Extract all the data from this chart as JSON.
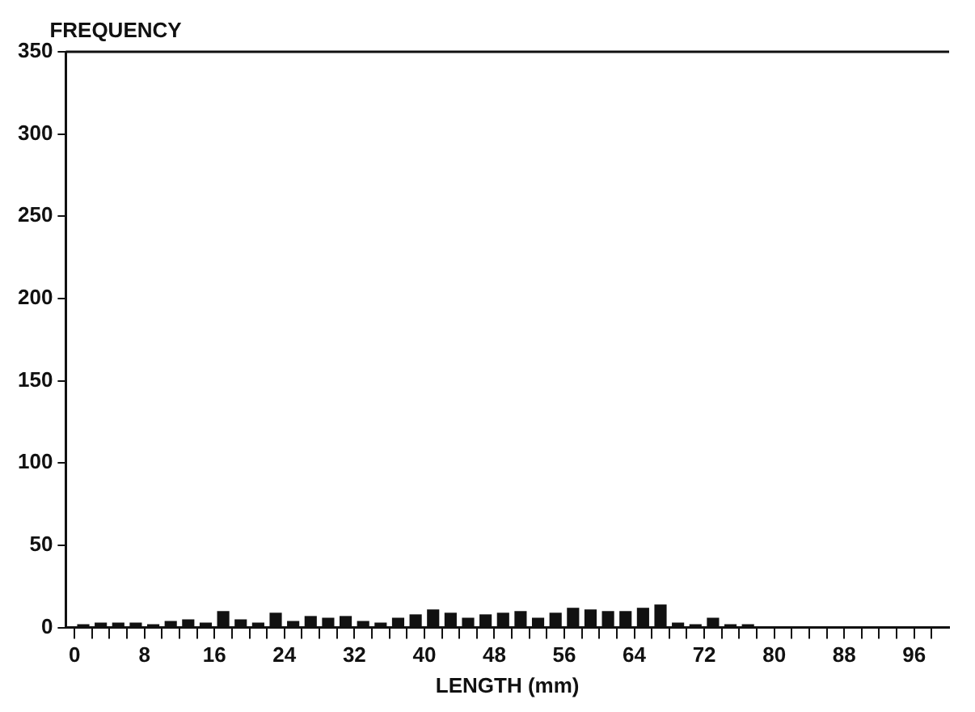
{
  "chart_data": {
    "type": "histogram",
    "xlabel": "LENGTH (mm)",
    "ylabel": "FREQUENCY",
    "bins": [
      0,
      2,
      4,
      6,
      8,
      10,
      12,
      14,
      16,
      18,
      20,
      22,
      24,
      26,
      28,
      30,
      32,
      34,
      36,
      38,
      40,
      42,
      44,
      46,
      48,
      50,
      52,
      54,
      56,
      58,
      60,
      62,
      64,
      66,
      68,
      70,
      72,
      74,
      76,
      78,
      80,
      82,
      84,
      86,
      88,
      90,
      92,
      94,
      96,
      98,
      100
    ],
    "values": [
      2,
      3,
      3,
      3,
      2,
      4,
      5,
      3,
      10,
      5,
      3,
      9,
      4,
      7,
      6,
      7,
      4,
      3,
      6,
      8,
      11,
      9,
      6,
      8,
      9,
      10,
      6,
      9,
      12,
      11,
      10,
      10,
      12,
      14,
      3,
      2,
      6,
      2,
      2,
      0,
      0,
      0,
      0,
      0,
      0,
      0,
      0,
      0,
      0,
      0
    ],
    "color": "#111111",
    "xlim": [
      -1,
      100
    ],
    "xticks": [
      0,
      {
        "value": 2,
        "label": null
      },
      {
        "value": 4,
        "label": null
      },
      {
        "value": 6,
        "label": null
      },
      8,
      {
        "value": 10,
        "label": null
      },
      {
        "value": 12,
        "label": null
      },
      {
        "value": 14,
        "label": null
      },
      16,
      {
        "value": 18,
        "label": null
      },
      {
        "value": 20,
        "label": null
      },
      {
        "value": 22,
        "label": null
      },
      24,
      {
        "value": 26,
        "label": null
      },
      {
        "value": 28,
        "label": null
      },
      {
        "value": 30,
        "label": null
      },
      32,
      {
        "value": 34,
        "label": null
      },
      {
        "value": 36,
        "label": null
      },
      {
        "value": 38,
        "label": null
      },
      40,
      {
        "value": 42,
        "label": null
      },
      {
        "value": 44,
        "label": null
      },
      {
        "value": 46,
        "label": null
      },
      48,
      {
        "value": 50,
        "label": null
      },
      {
        "value": 52,
        "label": null
      },
      {
        "value": 54,
        "label": null
      },
      56,
      {
        "value": 58,
        "label": null
      },
      {
        "value": 60,
        "label": null
      },
      {
        "value": 62,
        "label": null
      },
      64,
      {
        "value": 66,
        "label": null
      },
      {
        "value": 68,
        "label": null
      },
      {
        "value": 70,
        "label": null
      },
      72,
      {
        "value": 74,
        "label": null
      },
      {
        "value": 76,
        "label": null
      },
      {
        "value": 78,
        "label": null
      },
      80,
      {
        "value": 82,
        "label": null
      },
      {
        "value": 84,
        "label": null
      },
      {
        "value": 86,
        "label": null
      },
      88,
      {
        "value": 90,
        "label": null
      },
      {
        "value": 92,
        "label": null
      },
      {
        "value": 94,
        "label": null
      },
      96,
      {
        "value": 98,
        "label": null
      }
    ],
    "ylim": [
      0,
      350
    ],
    "yticks": [
      0,
      50,
      100,
      150,
      200,
      250,
      300,
      350
    ],
    "grid": false,
    "legend": false
  }
}
